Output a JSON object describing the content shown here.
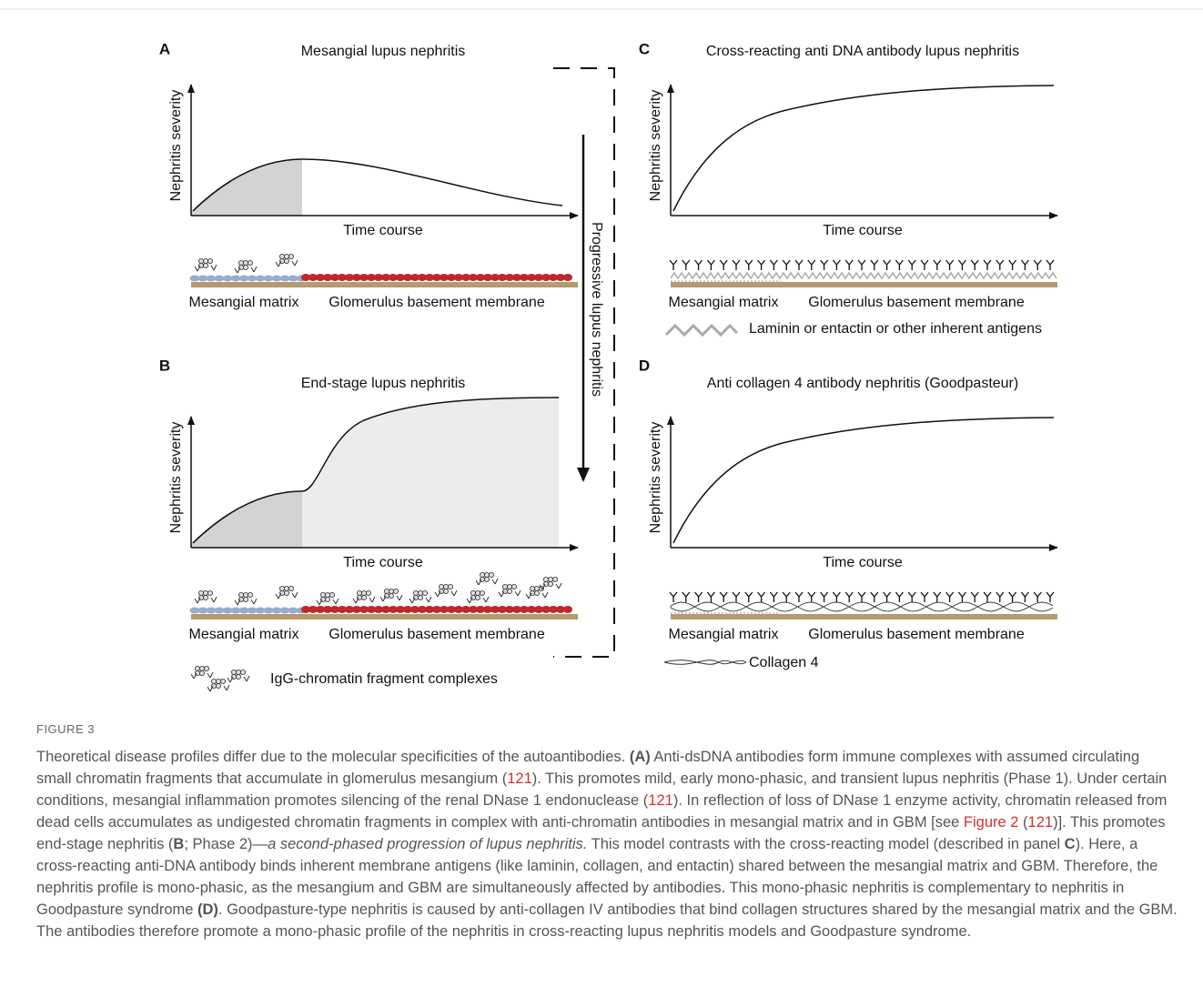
{
  "figure": {
    "panels": [
      {
        "label": "A",
        "title": "Mesangial lupus nephritis",
        "y_label": "Nephritis severity",
        "x_label": "Time course",
        "membrane_labels": [
          "Mesangial matrix",
          "Glomerulus basement membrane"
        ]
      },
      {
        "label": "B",
        "title": "End-stage lupus nephritis",
        "y_label": "Nephritis severity",
        "x_label": "Time course",
        "membrane_labels": [
          "Mesangial matrix",
          "Glomerulus basement membrane"
        ]
      },
      {
        "label": "C",
        "title": "Cross-reacting anti DNA antibody lupus nephritis",
        "y_label": "Nephritis severity",
        "x_label": "Time course",
        "membrane_labels": [
          "Mesangial matrix",
          "Glomerulus basement membrane"
        ],
        "legend": "Laminin or entactin or other inherent antigens"
      },
      {
        "label": "D",
        "title": "Anti collagen 4 antibody nephritis (Goodpasteur)",
        "y_label": "Nephritis severity",
        "x_label": "Time course",
        "membrane_labels": [
          "Mesangial matrix",
          "Glomerulus basement membrane"
        ],
        "legend": "Collagen 4"
      }
    ],
    "arrow_label": "Progressive lupus nephritis",
    "complex_legend": "IgG-chromatin fragment complexes"
  },
  "caption": {
    "label": "FIGURE 3",
    "runs": [
      {
        "text": "Theoretical disease profiles differ due to the molecular specificities of the autoantibodies. ",
        "style": "plain"
      },
      {
        "text": "(A)",
        "style": "bold"
      },
      {
        "text": " Anti-dsDNA antibodies form immune complexes with assumed circulating small chromatin fragments that accumulate in glomerulus mesangium (",
        "style": "plain"
      },
      {
        "text": "121",
        "style": "link"
      },
      {
        "text": "). This promotes mild, early mono-phasic, and transient lupus nephritis (Phase 1). Under certain conditions, mesangial inflammation promotes silencing of the renal DNase 1 endonuclease (",
        "style": "plain"
      },
      {
        "text": "121",
        "style": "link"
      },
      {
        "text": "). In reflection of loss of DNase 1 enzyme activity, chromatin released from dead cells accumulates as undigested chromatin fragments in complex with anti-chromatin antibodies in mesangial matrix and in GBM [see ",
        "style": "plain"
      },
      {
        "text": "Figure 2",
        "style": "link"
      },
      {
        "text": " (",
        "style": "plain"
      },
      {
        "text": "121",
        "style": "link"
      },
      {
        "text": ")]. This promotes end-stage nephritis (",
        "style": "plain"
      },
      {
        "text": "B",
        "style": "bold"
      },
      {
        "text": "; Phase 2)—",
        "style": "plain"
      },
      {
        "text": "a second-phased progression of lupus nephritis.",
        "style": "italic"
      },
      {
        "text": " This model contrasts with the cross-reacting model (described in panel ",
        "style": "plain"
      },
      {
        "text": "C",
        "style": "bold"
      },
      {
        "text": "). Here, a cross-reacting anti-DNA antibody binds inherent membrane antigens (like laminin, collagen, and entactin) shared between the mesangial matrix and GBM. Therefore, the nephritis profile is mono-phasic, as the mesangium and GBM are simultaneously affected by antibodies. This mono-phasic nephritis is complementary to nephritis in Goodpasture syndrome ",
        "style": "plain"
      },
      {
        "text": "(D)",
        "style": "bold"
      },
      {
        "text": ". Goodpasture-type nephritis is caused by anti-collagen IV antibodies that bind collagen structures shared by the mesangial matrix and the GBM. The antibodies therefore promote a mono-phasic profile of the nephritis in cross-reacting lupus nephritis models and Goodpasture syndrome.",
        "style": "plain"
      }
    ]
  }
}
